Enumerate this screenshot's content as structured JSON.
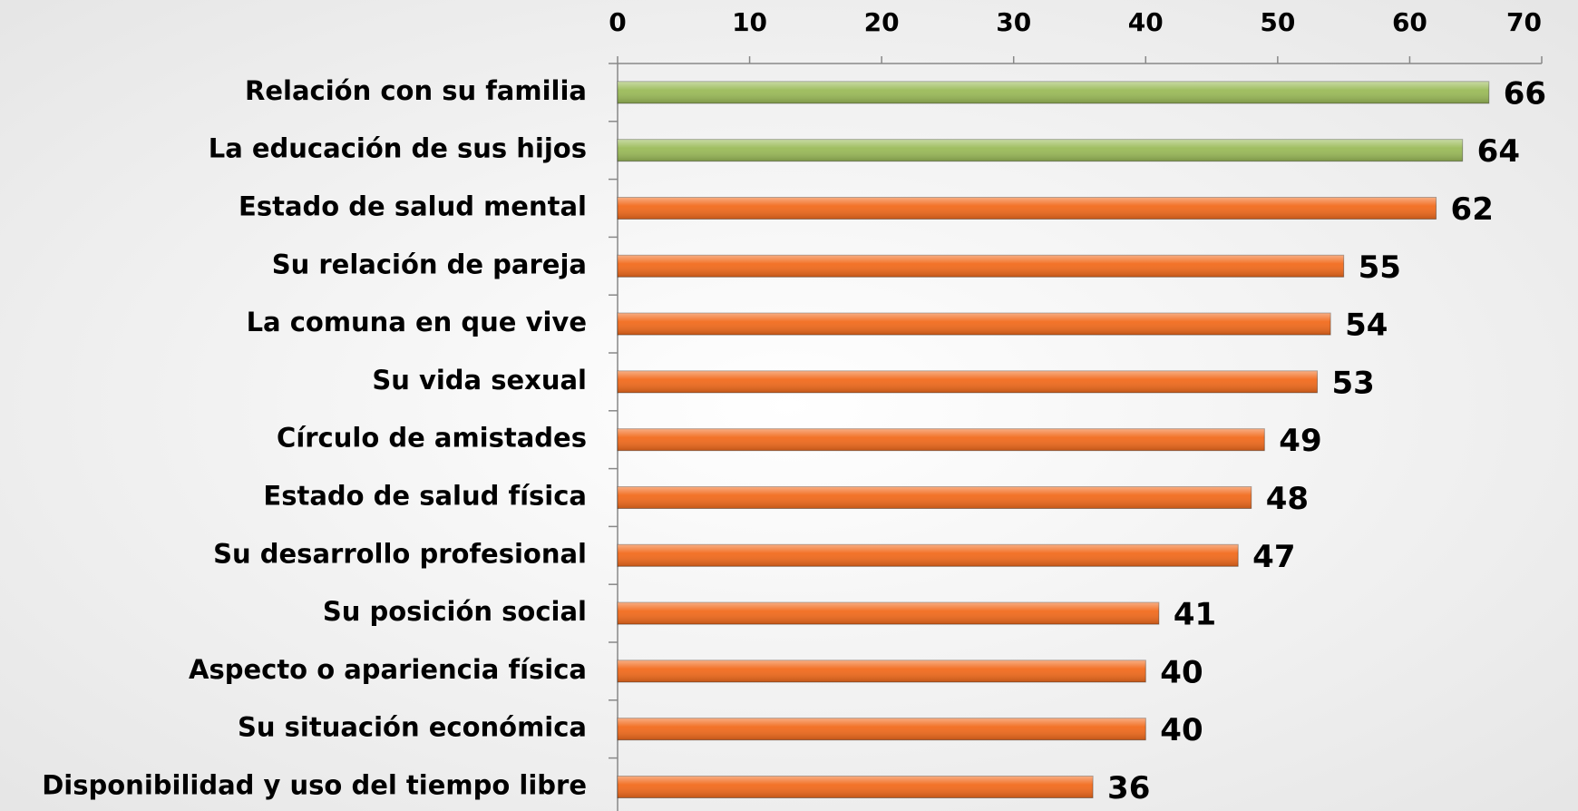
{
  "chart_data": {
    "type": "hbar",
    "categories": [
      "Relación con su familia",
      "La educación de sus hijos",
      "Estado de salud mental",
      "Su relación de pareja",
      "La comuna en que vive",
      "Su vida sexual",
      "Círculo de amistades",
      "Estado de salud física",
      "Su desarrollo profesional",
      "Su posición social",
      "Aspecto o apariencia física",
      "Su situación económica",
      "Disponibilidad y uso del tiempo libre"
    ],
    "values": [
      66,
      64,
      62,
      55,
      54,
      53,
      49,
      48,
      47,
      41,
      40,
      40,
      36
    ],
    "colors": [
      "#9bbb59",
      "#9bbb59",
      "#f26b1d",
      "#f26b1d",
      "#f26b1d",
      "#f26b1d",
      "#f26b1d",
      "#f26b1d",
      "#f26b1d",
      "#f26b1d",
      "#f26b1d",
      "#f26b1d",
      "#f26b1d"
    ],
    "xlim": [
      0,
      70
    ],
    "xticks": [
      0,
      10,
      20,
      30,
      40,
      50,
      60,
      70
    ]
  }
}
